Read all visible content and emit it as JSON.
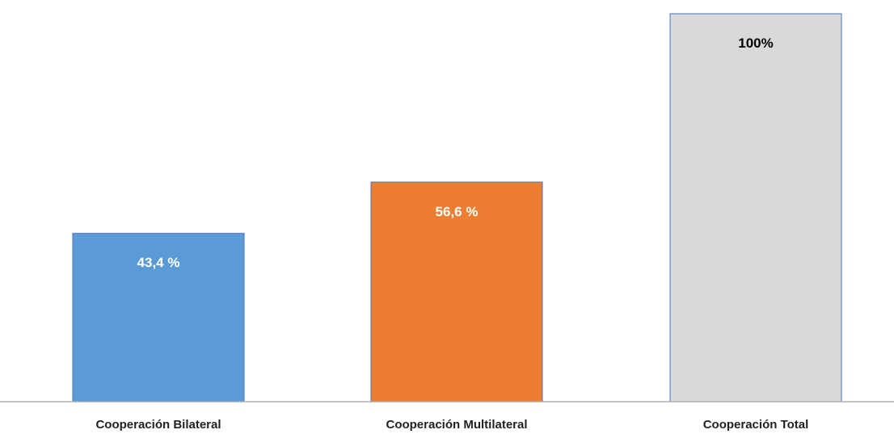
{
  "chart_data": {
    "type": "bar",
    "categories": [
      "Cooperación Bilateral",
      "Cooperación Multilateral",
      "Cooperación Total"
    ],
    "values": [
      43.4,
      56.6,
      100
    ],
    "data_labels": [
      "43,4 %",
      "56,6 %",
      "100%"
    ],
    "colors": [
      "#5b9bd5",
      "#ed7d31",
      "#d9d9d9"
    ],
    "label_colors": [
      "#ffffff",
      "#ffffff",
      "#000000"
    ],
    "border_color": "#4472c4",
    "title": "",
    "xlabel": "",
    "ylabel": "",
    "ylim": [
      0,
      100
    ],
    "grid": false,
    "legend": "none"
  }
}
